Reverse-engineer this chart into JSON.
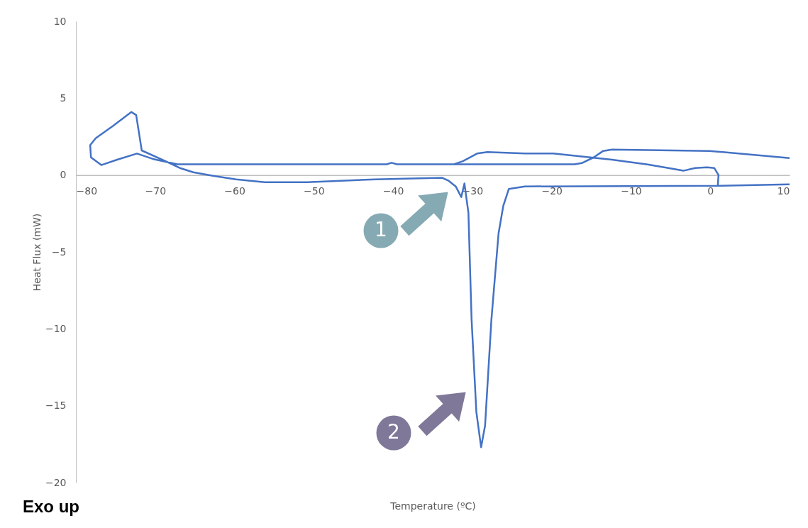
{
  "chart_data": {
    "type": "line",
    "xlabel": "Temperature (ºC)",
    "ylabel": "Heat Flux (mW)",
    "xlim": [
      -80,
      10
    ],
    "xticks": [
      -80,
      -70,
      -60,
      -50,
      -40,
      -30,
      -20,
      -10,
      0,
      10
    ],
    "ylim": [
      -20,
      10
    ],
    "yticks": [
      -20,
      -15,
      -10,
      -5,
      0,
      5,
      10
    ],
    "grid": false,
    "legend": false,
    "marker": "none",
    "line_style": "solid",
    "series": [
      {
        "color": "#4472c4",
        "x": [
          10.0,
          0.95,
          1.04,
          0.5,
          -0.4,
          -1.9,
          -3.4,
          -4.9,
          -7.9,
          -12.4,
          -19.8,
          -23.4,
          -28.1,
          -29.4,
          -31.2,
          -32.3,
          -39.5,
          -40.2,
          -40.8,
          -62.7,
          -67.2,
          -70.3,
          -72.3,
          -74.8,
          -76.8,
          -78.1,
          -78.2,
          -77.5,
          -75.3,
          -73.0,
          -72.4,
          -72.0,
          -71.7,
          -68.7,
          -66.9,
          -65.2,
          -62.7,
          -59.8,
          -56.2,
          -50.8,
          -42.2,
          -33.8,
          -33.0,
          -32.1,
          -31.4,
          -31.0,
          -30.5,
          -30.1,
          -29.5,
          -28.9,
          -28.4,
          -27.6,
          -26.7,
          -26.1,
          -25.4,
          -23.4,
          0.95
        ],
        "values": [
          -0.6,
          -0.7,
          0,
          0.46,
          0.5,
          0.46,
          0.28,
          0.42,
          0.69,
          1.0,
          1.4,
          1.4,
          1.5,
          1.4,
          0.9,
          0.7,
          0.7,
          0.8,
          0.7,
          0.7,
          0.7,
          1.05,
          1.4,
          1.0,
          0.65,
          1.15,
          1.95,
          2.4,
          3.2,
          4.1,
          3.9,
          2.6,
          1.6,
          0.9,
          0.46,
          0.18,
          -0.05,
          -0.28,
          -0.46,
          -0.46,
          -0.28,
          -0.18,
          -0.37,
          -0.74,
          -1.43,
          -0.55,
          -2.45,
          -9.4,
          -15.4,
          -17.7,
          -16.3,
          -9.4,
          -3.8,
          -2.0,
          -0.9,
          -0.74,
          -0.7
        ]
      },
      {
        "color": "#4472c4",
        "x": [
          10.0,
          -0.1,
          -12.4,
          -13.5,
          -14.7,
          -16.2,
          -17.1,
          -32.3
        ],
        "values": [
          1.1,
          1.57,
          1.66,
          1.57,
          1.15,
          0.78,
          0.7,
          0.7
        ]
      }
    ],
    "annotations": [
      "1",
      "2",
      "Exo up"
    ]
  }
}
